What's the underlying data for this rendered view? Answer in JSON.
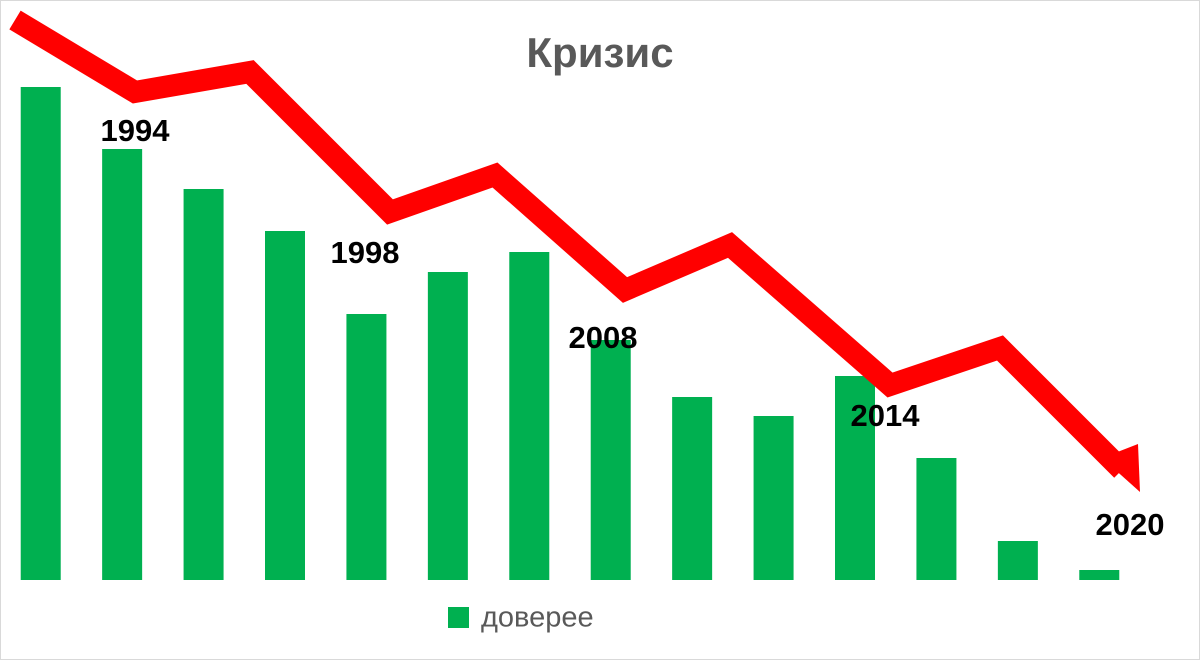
{
  "chart_data": {
    "type": "bar",
    "title": "Кризис",
    "categories": [
      null,
      null,
      null,
      null,
      null,
      null,
      null,
      null,
      null,
      null,
      null,
      null,
      null,
      null
    ],
    "series": [
      {
        "name": "доверее",
        "color": "#00b050",
        "values": [
          493,
          431,
          391,
          349,
          266,
          308,
          328,
          240,
          183,
          164,
          204,
          122,
          39,
          10
        ]
      }
    ],
    "ylim": [
      0,
      500
    ],
    "annotations": [
      "1994",
      "1998",
      "2008",
      "2014",
      "2020"
    ]
  }
}
